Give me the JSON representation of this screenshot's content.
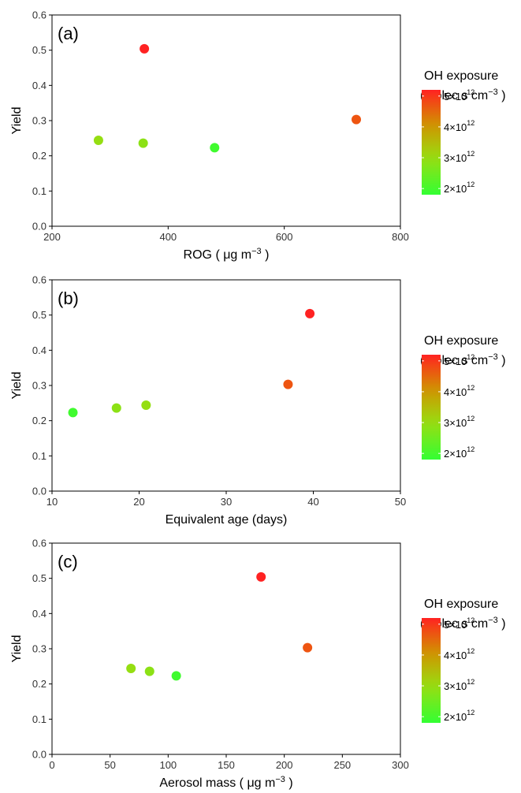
{
  "chart_data": [
    {
      "type": "scatter",
      "panel_label": "(a)",
      "xlabel": "ROG ( μg  m",
      "xlabel_sup": "−3",
      "xlabel_suffix": " )",
      "ylabel": "Yield",
      "xlim": [
        200,
        800
      ],
      "ylim": [
        0,
        0.6
      ],
      "xticks": [
        200,
        400,
        600,
        800
      ],
      "yticks": [
        0.0,
        0.1,
        0.2,
        0.3,
        0.4,
        0.5,
        0.6
      ],
      "x": [
        280,
        357,
        359,
        480,
        724
      ],
      "y": [
        0.244,
        0.236,
        0.504,
        0.223,
        0.303
      ],
      "oh_exposure": [
        2950000000000.0,
        2850000000000.0,
        5200000000000.0,
        1950000000000.0,
        4700000000000.0
      ],
      "grid": false
    },
    {
      "type": "scatter",
      "panel_label": "(b)",
      "xlabel": "Equivalent age (days)",
      "xlabel_sup": "",
      "xlabel_suffix": "",
      "ylabel": "Yield",
      "xlim": [
        10,
        50
      ],
      "ylim": [
        0,
        0.6
      ],
      "xticks": [
        10,
        20,
        30,
        40,
        50
      ],
      "yticks": [
        0.0,
        0.1,
        0.2,
        0.3,
        0.4,
        0.5,
        0.6
      ],
      "x": [
        12.4,
        17.4,
        20.8,
        37.1,
        39.6
      ],
      "y": [
        0.223,
        0.236,
        0.244,
        0.303,
        0.504
      ],
      "oh_exposure": [
        1950000000000.0,
        2850000000000.0,
        2950000000000.0,
        4700000000000.0,
        5200000000000.0
      ],
      "grid": false
    },
    {
      "type": "scatter",
      "panel_label": "(c)",
      "xlabel": "Aerosol mass ( μg  m",
      "xlabel_sup": "−3",
      "xlabel_suffix": " )",
      "ylabel": "Yield",
      "xlim": [
        0,
        300
      ],
      "ylim": [
        0,
        0.6
      ],
      "xticks": [
        0,
        50,
        100,
        150,
        200,
        250,
        300
      ],
      "yticks": [
        0.0,
        0.1,
        0.2,
        0.3,
        0.4,
        0.5,
        0.6
      ],
      "x": [
        68,
        84,
        107,
        180,
        220
      ],
      "y": [
        0.244,
        0.236,
        0.223,
        0.504,
        0.303
      ],
      "oh_exposure": [
        2950000000000.0,
        2850000000000.0,
        1950000000000.0,
        5200000000000.0,
        4700000000000.0
      ],
      "grid": false
    }
  ],
  "legend": {
    "title": "OH exposure",
    "units": "(molec s cm",
    "units_sup": "−3",
    "units_suffix": " )",
    "range": [
      1800000000000.0,
      5200000000000.0
    ],
    "ticks": [
      {
        "value": 2000000000000.0,
        "mantissa": "2",
        "exponent": "12"
      },
      {
        "value": 3000000000000.0,
        "mantissa": "3",
        "exponent": "12"
      },
      {
        "value": 4000000000000.0,
        "mantissa": "4",
        "exponent": "12"
      },
      {
        "value": 5000000000000.0,
        "mantissa": "5",
        "exponent": "12"
      }
    ],
    "colors": [
      "#33ff33",
      "#99dd11",
      "#cc9900",
      "#ff2222"
    ]
  }
}
